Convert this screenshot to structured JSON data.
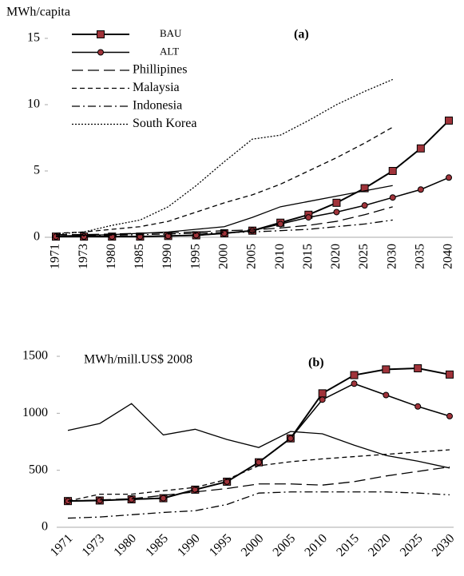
{
  "chart_data": [
    {
      "type": "line",
      "ylabel": "MWh/capita",
      "annotation": "(a)",
      "categories": [
        "1971",
        "1973",
        "1980",
        "1985",
        "1990",
        "1995",
        "2000",
        "2005",
        "2010",
        "2015",
        "2020",
        "2025",
        "2030",
        "2035",
        "2040"
      ],
      "ylim": [
        0,
        15
      ],
      "yticks": [
        0,
        5,
        10,
        15
      ],
      "series": [
        {
          "name": "BAU",
          "style": "square",
          "color": "#a0333a",
          "values": [
            0.05,
            0.05,
            0.05,
            0.05,
            0.1,
            0.15,
            0.3,
            0.5,
            1.1,
            1.7,
            2.6,
            3.7,
            5.0,
            6.7,
            8.8
          ]
        },
        {
          "name": "ALT",
          "style": "circle",
          "color": "#a0333a",
          "values": [
            0.05,
            0.05,
            0.05,
            0.05,
            0.1,
            0.15,
            0.3,
            0.5,
            1.0,
            1.5,
            1.9,
            2.4,
            3.0,
            3.6,
            4.5
          ]
        },
        {
          "name": "Phillipines",
          "style": "longdash",
          "values": [
            0.2,
            0.2,
            0.25,
            0.3,
            0.35,
            0.4,
            0.5,
            0.55,
            0.7,
            0.9,
            1.2,
            1.7,
            2.3,
            null,
            null
          ]
        },
        {
          "name": "Malaysia",
          "style": "dash",
          "values": [
            0.3,
            0.4,
            0.6,
            0.8,
            1.2,
            1.9,
            2.6,
            3.2,
            4.0,
            5.0,
            6.0,
            7.1,
            8.3,
            null,
            null
          ]
        },
        {
          "name": "Indonesia",
          "style": "dashdot",
          "values": [
            0.05,
            0.1,
            0.15,
            0.2,
            0.25,
            0.3,
            0.35,
            0.4,
            0.5,
            0.6,
            0.8,
            1.0,
            1.3,
            null,
            null
          ]
        },
        {
          "name": "South Korea",
          "style": "dot",
          "values": [
            0.25,
            0.4,
            0.9,
            1.3,
            2.3,
            3.9,
            5.7,
            7.4,
            7.7,
            8.8,
            10.0,
            11.0,
            11.9,
            null,
            null
          ]
        },
        {
          "style": "solid",
          "values": [
            0.1,
            0.15,
            0.2,
            0.3,
            0.4,
            0.6,
            0.8,
            1.5,
            2.3,
            2.7,
            3.1,
            3.5,
            3.9,
            null,
            null
          ]
        }
      ]
    },
    {
      "type": "line",
      "ylabel": "MWh/mill.US$ 2008",
      "annotation": "(b)",
      "categories": [
        "1971",
        "1973",
        "1980",
        "1985",
        "1990",
        "1995",
        "2000",
        "2005",
        "2010",
        "2015",
        "2020",
        "2025",
        "2030"
      ],
      "ylim": [
        0,
        1500
      ],
      "yticks": [
        0,
        500,
        1000,
        1500
      ],
      "series": [
        {
          "style": "square",
          "color": "#a0333a",
          "values": [
            230,
            235,
            245,
            255,
            330,
            400,
            570,
            780,
            1175,
            1335,
            1385,
            1395,
            1340
          ]
        },
        {
          "style": "circle",
          "color": "#a0333a",
          "values": [
            230,
            235,
            245,
            255,
            330,
            400,
            570,
            780,
            1120,
            1260,
            1160,
            1060,
            975
          ]
        },
        {
          "style": "solid",
          "values": [
            850,
            910,
            1085,
            810,
            860,
            770,
            700,
            840,
            820,
            720,
            630,
            580,
            520
          ]
        },
        {
          "style": "longdash",
          "values": [
            230,
            240,
            250,
            280,
            310,
            340,
            380,
            380,
            370,
            400,
            450,
            490,
            530
          ]
        },
        {
          "style": "dash",
          "values": [
            230,
            290,
            290,
            320,
            350,
            420,
            540,
            575,
            600,
            620,
            640,
            660,
            680
          ]
        },
        {
          "style": "dashdot",
          "values": [
            80,
            90,
            110,
            130,
            145,
            200,
            300,
            310,
            310,
            310,
            310,
            300,
            285
          ]
        }
      ]
    }
  ]
}
